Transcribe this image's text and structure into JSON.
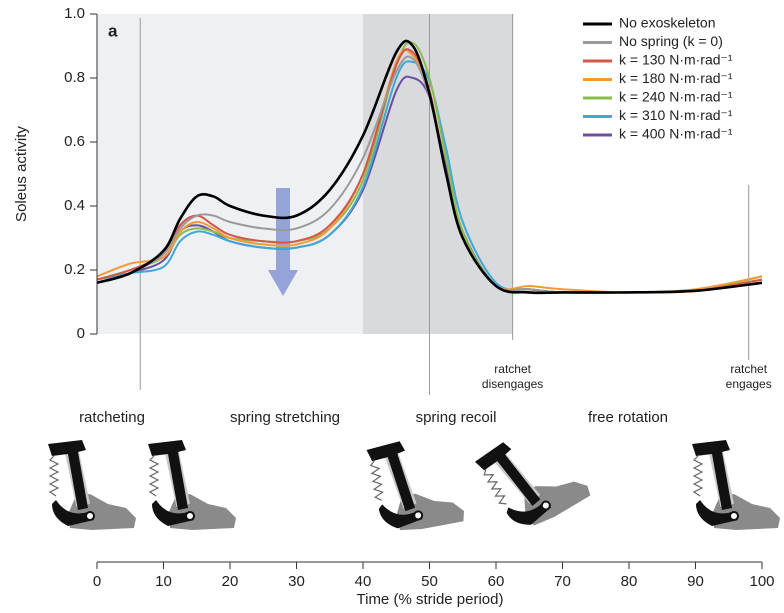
{
  "chart_data": {
    "type": "line",
    "panel_label": "a",
    "y_label": "Soleus activity",
    "x_label": "Time (% stride period)",
    "xlim": [
      0,
      100
    ],
    "xticks": [
      0,
      10,
      20,
      30,
      40,
      50,
      60,
      70,
      80,
      90,
      100
    ],
    "ylim": [
      0,
      1
    ],
    "yticks": [
      0,
      0.2,
      0.4,
      0.6,
      0.8,
      {
        "value": 1,
        "label": "1.0"
      }
    ],
    "spans": [
      {
        "x": [
          0,
          40
        ],
        "color": "#eef0f4"
      },
      {
        "x": [
          40,
          62.5
        ],
        "color": "#d9dade"
      }
    ],
    "vlines": [
      6.5,
      50,
      62.5,
      98
    ],
    "annotations": [
      {
        "x": 62.5,
        "lines": [
          "ratchet",
          "disengages"
        ]
      },
      {
        "x": 98,
        "lines": [
          "ratchet",
          "engages"
        ]
      }
    ],
    "phases": [
      "ratcheting",
      "spring stretching",
      "spring recoil",
      "free rotation"
    ],
    "x": [
      0,
      5,
      10,
      12.5,
      15,
      17.5,
      20,
      25,
      30,
      35,
      40,
      45,
      47.5,
      50,
      52.5,
      55,
      60,
      65,
      70,
      80,
      90,
      100
    ],
    "series": [
      {
        "name": "No exoskeleton",
        "color": "#000000",
        "values": [
          0.16,
          0.19,
          0.26,
          0.36,
          0.43,
          0.43,
          0.4,
          0.37,
          0.37,
          0.45,
          0.62,
          0.88,
          0.9,
          0.75,
          0.5,
          0.3,
          0.15,
          0.13,
          0.13,
          0.13,
          0.135,
          0.16
        ]
      },
      {
        "name": "No spring (k = 0)",
        "color": "#9a9a9a",
        "values": [
          0.16,
          0.19,
          0.25,
          0.33,
          0.37,
          0.37,
          0.35,
          0.33,
          0.33,
          0.39,
          0.55,
          0.82,
          0.86,
          0.74,
          0.5,
          0.3,
          0.15,
          0.14,
          0.13,
          0.13,
          0.135,
          0.16
        ]
      },
      {
        "name": "k = 130 N·m·rad⁻¹",
        "color": "#d4574a",
        "values": [
          0.17,
          0.2,
          0.25,
          0.34,
          0.37,
          0.34,
          0.31,
          0.29,
          0.29,
          0.34,
          0.5,
          0.84,
          0.88,
          0.76,
          0.5,
          0.3,
          0.15,
          0.14,
          0.13,
          0.13,
          0.135,
          0.17
        ]
      },
      {
        "name": "k = 180 N·m·rad⁻¹",
        "color": "#f29a3a",
        "values": [
          0.18,
          0.22,
          0.24,
          0.32,
          0.35,
          0.33,
          0.3,
          0.28,
          0.28,
          0.33,
          0.5,
          0.85,
          0.87,
          0.76,
          0.5,
          0.3,
          0.15,
          0.15,
          0.14,
          0.13,
          0.14,
          0.18
        ]
      },
      {
        "name": "k = 240 N·m·rad⁻¹",
        "color": "#8dbb4a",
        "values": [
          0.17,
          0.2,
          0.24,
          0.31,
          0.33,
          0.32,
          0.3,
          0.29,
          0.29,
          0.33,
          0.48,
          0.84,
          0.91,
          0.8,
          0.55,
          0.32,
          0.15,
          0.14,
          0.13,
          0.13,
          0.135,
          0.18
        ]
      },
      {
        "name": "k = 310 N·m·rad⁻¹",
        "color": "#3fa9d6",
        "values": [
          0.17,
          0.19,
          0.21,
          0.29,
          0.32,
          0.31,
          0.29,
          0.27,
          0.27,
          0.31,
          0.46,
          0.8,
          0.85,
          0.79,
          0.58,
          0.35,
          0.16,
          0.14,
          0.13,
          0.13,
          0.135,
          0.17
        ]
      },
      {
        "name": "k = 400 N·m·rad⁻¹",
        "color": "#6b4fa0",
        "values": [
          0.16,
          0.19,
          0.23,
          0.32,
          0.34,
          0.32,
          0.29,
          0.27,
          0.27,
          0.31,
          0.45,
          0.76,
          0.8,
          0.74,
          0.52,
          0.32,
          0.15,
          0.14,
          0.13,
          0.13,
          0.135,
          0.16
        ]
      }
    ]
  }
}
